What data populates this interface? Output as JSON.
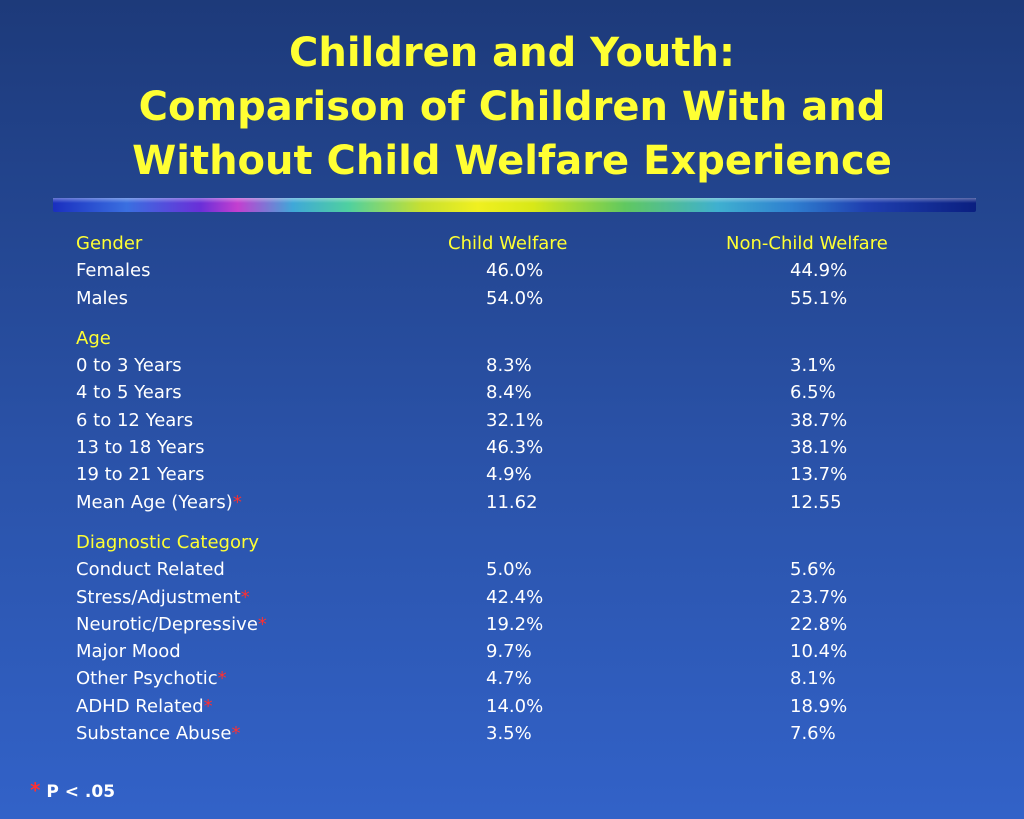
{
  "title": {
    "line1": "Children and Youth:",
    "line2": "Comparison of Children With and",
    "line3": "Without Child Welfare Experience"
  },
  "columns": {
    "child_welfare": "Child Welfare",
    "non_child_welfare": "Non-Child Welfare"
  },
  "sections": {
    "gender": {
      "heading": "Gender",
      "rows": [
        {
          "label": "Females",
          "cw": "46.0%",
          "ncw": "44.9%"
        },
        {
          "label": "Males",
          "cw": "54.0%",
          "ncw": "55.1%"
        }
      ]
    },
    "age": {
      "heading": "Age",
      "rows": [
        {
          "label": "0 to 3 Years",
          "cw": "8.3%",
          "ncw": "3.1%"
        },
        {
          "label": "4 to 5 Years",
          "cw": "8.4%",
          "ncw": "6.5%"
        },
        {
          "label": "6 to 12 Years",
          "cw": "32.1%",
          "ncw": "38.7%"
        },
        {
          "label": "13 to 18 Years",
          "cw": "46.3%",
          "ncw": "38.1%"
        },
        {
          "label": "19 to 21 Years",
          "cw": "4.9%",
          "ncw": "13.7%"
        },
        {
          "label": "Mean Age (Years)",
          "star": "*",
          "cw": "11.62",
          "ncw": "12.55"
        }
      ]
    },
    "diagnostic": {
      "heading": "Diagnostic Category",
      "rows": [
        {
          "label": "Conduct Related",
          "cw": "5.0%",
          "ncw": "5.6%"
        },
        {
          "label": "Stress/Adjustment",
          "star": "*",
          "cw": "42.4%",
          "ncw": "23.7%"
        },
        {
          "label": "Neurotic/Depressive",
          "star": "*",
          "cw": "19.2%",
          "ncw": "22.8%"
        },
        {
          "label": "Major Mood",
          "cw": "9.7%",
          "ncw": "10.4%"
        },
        {
          "label": "Other Psychotic",
          "star": "*",
          "cw": "4.7%",
          "ncw": "8.1%"
        },
        {
          "label": "ADHD Related",
          "star": "*",
          "cw": "14.0%",
          "ncw": "18.9%"
        },
        {
          "label": "Substance Abuse",
          "star": "*",
          "cw": "3.5%",
          "ncw": "7.6%"
        }
      ]
    }
  },
  "footnote": {
    "star": "*",
    "text": " P < .05"
  },
  "colors": {
    "title": "#ffff33",
    "heading": "#ffff33",
    "star": "#ff3030",
    "text": "#ffffff"
  }
}
